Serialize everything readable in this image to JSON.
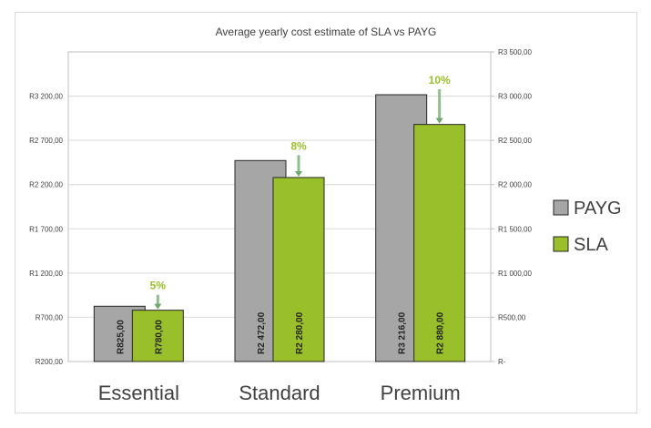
{
  "chart_data": {
    "type": "bar",
    "title": "Average yearly cost estimate of SLA vs PAYG",
    "categories": [
      "Essential",
      "Standard",
      "Premium"
    ],
    "series": [
      {
        "name": "PAYG",
        "values": [
          825,
          2472,
          3216
        ],
        "labels": [
          "R825,00",
          "R2 472,00",
          "R3 216,00"
        ],
        "color": "#a6a6a6"
      },
      {
        "name": "SLA",
        "values": [
          780,
          2280,
          2880
        ],
        "labels": [
          "R780,00",
          "R2 280,00",
          "R2 880,00"
        ],
        "color": "#99bf2a"
      }
    ],
    "savings": [
      "5%",
      "8%",
      "10%"
    ],
    "savings_color": "#99bf2a",
    "left_axis": {
      "ylim": [
        200,
        3700
      ],
      "ticks": [
        200,
        700,
        1200,
        1700,
        2200,
        2700,
        3200
      ],
      "tick_labels": [
        "R200,00",
        "R700,00",
        "R1 200,00",
        "R1 700,00",
        "R2 200,00",
        "R2 700,00",
        "R3 200,00"
      ]
    },
    "right_axis": {
      "ylim": [
        0,
        3500
      ],
      "ticks": [
        0,
        500,
        1000,
        1500,
        2000,
        2500,
        3000,
        3500
      ],
      "tick_labels": [
        "R-",
        "R500,00",
        "R1 000,00",
        "R1 500,00",
        "R2 000,00",
        "R2 500,00",
        "R3 000,00",
        "R3 500,00"
      ]
    },
    "grid": true,
    "legend_position": "right"
  }
}
